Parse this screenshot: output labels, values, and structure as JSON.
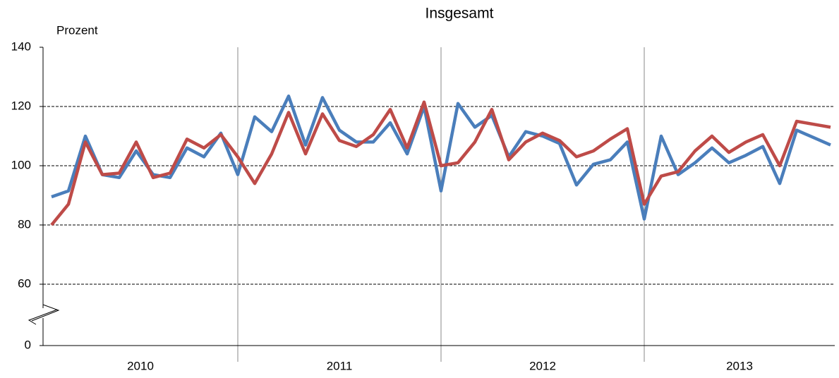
{
  "chart_data": {
    "type": "line",
    "title": "Insgesamt",
    "y_label": "Prozent",
    "categories": [
      null,
      null,
      null,
      null,
      null,
      null,
      null,
      null,
      null,
      null,
      null,
      null,
      null,
      null,
      null,
      null,
      null,
      null,
      null,
      null,
      null,
      null,
      null,
      null,
      null,
      null,
      null,
      null,
      null,
      null,
      null,
      null,
      null,
      null,
      null,
      null,
      null,
      null,
      null,
      null,
      null,
      null,
      null,
      null,
      null,
      null,
      null
    ],
    "x_groups": [
      "2010",
      "2011",
      "2012",
      "2013"
    ],
    "series": [
      {
        "color": "#4a7ebb",
        "values": [
          89.5,
          91.5,
          110,
          97,
          96,
          105,
          97,
          96,
          106,
          103,
          111,
          97,
          116.5,
          111.5,
          123.5,
          107,
          123,
          112,
          108,
          108,
          114.5,
          104,
          120,
          91.5,
          121,
          113,
          117,
          103,
          111.5,
          110,
          107.5,
          93.5,
          100.5,
          102,
          108,
          82,
          110,
          97,
          101,
          106,
          101,
          103.5,
          106.5,
          94,
          112,
          109.5,
          107
        ]
      },
      {
        "color": "#be4b48",
        "values": [
          80,
          87,
          108,
          97,
          97.5,
          108,
          96,
          97.5,
          109,
          106,
          110.5,
          103,
          94,
          104,
          118,
          104,
          117.5,
          108.5,
          106.5,
          110.5,
          119,
          106,
          121.5,
          100,
          101,
          108,
          119,
          102,
          108,
          111,
          108.5,
          103,
          105,
          109,
          112.5,
          87,
          96.5,
          98,
          105,
          110,
          104.5,
          108,
          110.5,
          100,
          115,
          114,
          113
        ]
      }
    ],
    "ylim": [
      0,
      140
    ],
    "yticks": [
      0,
      60,
      80,
      100,
      120,
      140
    ],
    "y_break": [
      0,
      60
    ],
    "grid": true
  }
}
